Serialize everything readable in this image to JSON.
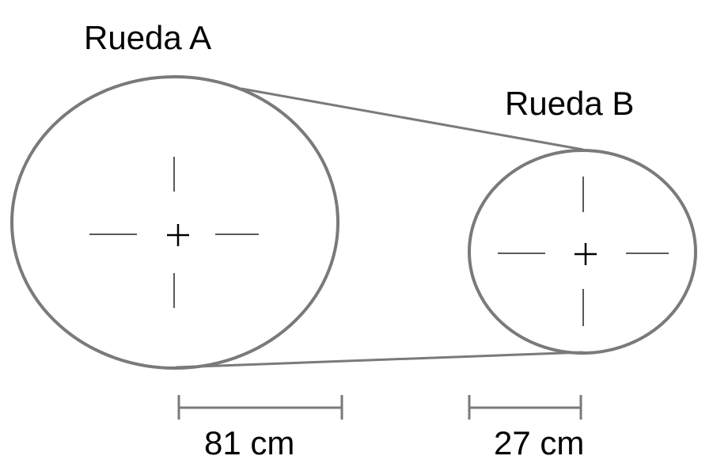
{
  "wheels": [
    {
      "label": "Rueda A",
      "radius_label": "81 cm"
    },
    {
      "label": "Rueda B",
      "radius_label": "27 cm"
    }
  ],
  "colors": {
    "outline": "#7a7a7a",
    "crosshair": "#5a5a5a",
    "text": "#000000",
    "background": "#ffffff"
  }
}
